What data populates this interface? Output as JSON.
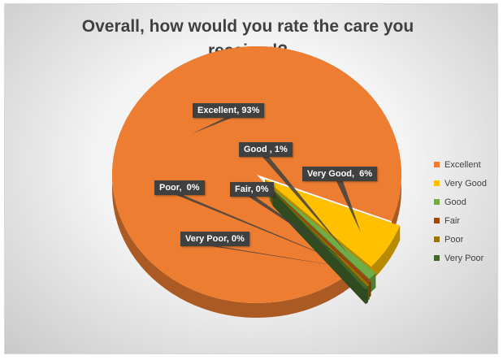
{
  "chart_data": {
    "type": "pie",
    "title": "Overall, how would you rate the care you received?",
    "categories": [
      "Excellent",
      "Very Good",
      "Good",
      "Fair",
      "Poor",
      "Very Poor"
    ],
    "values": [
      93,
      6,
      1,
      0,
      0,
      0
    ],
    "colors": [
      "#ED7D31",
      "#FFC000",
      "#70AD47",
      "#9E480E",
      "#997300",
      "#43682B"
    ],
    "data_labels": [
      "Excellent, 93%",
      "Very Good,  6%",
      "Good , 1%",
      "Fair, 0%",
      "Poor,  0%",
      "Very Poor, 0%"
    ],
    "legend_position": "right",
    "style": "3d-exploded"
  }
}
